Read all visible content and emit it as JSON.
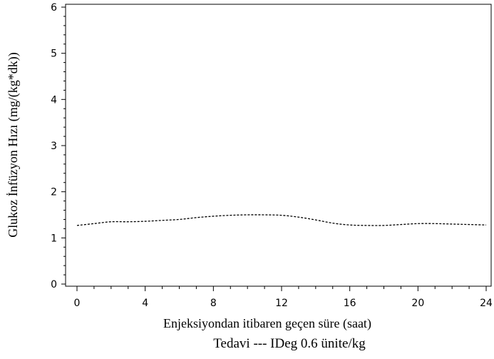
{
  "chart_data": {
    "type": "line",
    "xlabel": "Enjeksiyondan itibaren geçen süre (saat)",
    "ylabel": "Glukoz İnfüzyon Hızı (mg/(kg*dk))",
    "xlim": [
      0,
      24
    ],
    "ylim": [
      0,
      6
    ],
    "x_ticks": [
      "0",
      "4",
      "8",
      "12",
      "16",
      "20",
      "24"
    ],
    "y_ticks": [
      "0",
      "1",
      "2",
      "3",
      "4",
      "5",
      "6"
    ],
    "x_tick_values": [
      0,
      4,
      8,
      12,
      16,
      20,
      24
    ],
    "y_tick_values": [
      0,
      1,
      2,
      3,
      4,
      5,
      6
    ],
    "grid": false,
    "legend_position": "bottom",
    "legend_text": "Tedavi --- IDeg 0.6 ünite/kg",
    "series": [
      {
        "name": "IDeg 0.6 ünite/kg",
        "line_style": "dashed",
        "color": "#000000",
        "x": [
          0,
          1,
          2,
          3,
          4,
          5,
          6,
          7,
          8,
          9,
          10,
          11,
          12,
          13,
          14,
          15,
          16,
          17,
          18,
          19,
          20,
          21,
          22,
          23,
          24
        ],
        "y": [
          1.27,
          1.31,
          1.35,
          1.35,
          1.36,
          1.38,
          1.4,
          1.44,
          1.47,
          1.49,
          1.5,
          1.5,
          1.49,
          1.45,
          1.39,
          1.32,
          1.28,
          1.27,
          1.27,
          1.29,
          1.31,
          1.31,
          1.3,
          1.29,
          1.28
        ]
      }
    ]
  }
}
